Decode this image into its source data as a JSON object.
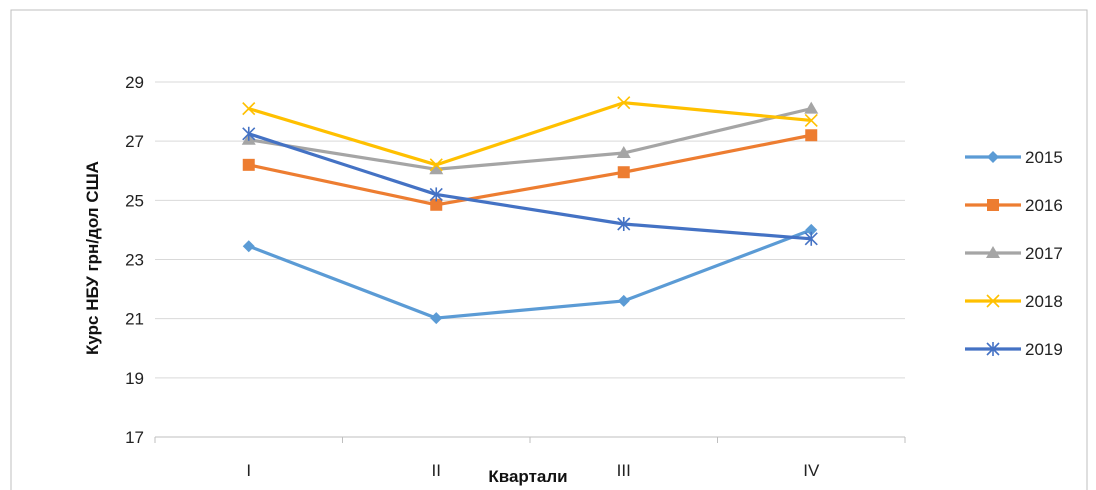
{
  "chart_data": {
    "type": "line",
    "title": "",
    "xlabel": "Квартали",
    "ylabel": "Курс НБУ грн/дол США",
    "categories": [
      "I",
      "II",
      "III",
      "IV"
    ],
    "ylim": [
      17,
      29
    ],
    "yticks": [
      17,
      19,
      21,
      23,
      25,
      27,
      29
    ],
    "grid": true,
    "legend_position": "right",
    "series": [
      {
        "name": "2015",
        "color": "#5B9BD5",
        "marker": "diamond",
        "values": [
          23.45,
          21.02,
          21.6,
          24.0
        ]
      },
      {
        "name": "2016",
        "color": "#ED7D31",
        "marker": "square",
        "values": [
          26.2,
          24.85,
          25.95,
          27.2
        ]
      },
      {
        "name": "2017",
        "color": "#A5A5A5",
        "marker": "triangle",
        "values": [
          27.05,
          26.05,
          26.6,
          28.1
        ]
      },
      {
        "name": "2018",
        "color": "#FFC000",
        "marker": "x",
        "values": [
          28.1,
          26.2,
          28.3,
          27.7
        ]
      },
      {
        "name": "2019",
        "color": "#4472C4",
        "marker": "star",
        "values": [
          27.25,
          25.2,
          24.2,
          23.7
        ]
      }
    ]
  }
}
